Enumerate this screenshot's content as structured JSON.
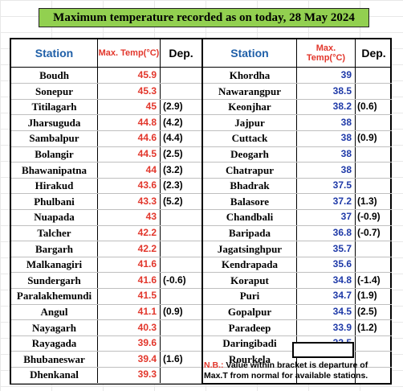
{
  "title": "Maximum temperature recorded as on today, 28 May 2024",
  "headers": {
    "station": "Station",
    "max": "Max. Temp(°C)",
    "dep": "Dep."
  },
  "left": [
    {
      "station": "Boudh",
      "max": "45.9",
      "dep": ""
    },
    {
      "station": "Sonepur",
      "max": "45.3",
      "dep": ""
    },
    {
      "station": "Titilagarh",
      "max": "45",
      "dep": "(2.9)"
    },
    {
      "station": "Jharsuguda",
      "max": "44.8",
      "dep": "(4.2)"
    },
    {
      "station": "Sambalpur",
      "max": "44.6",
      "dep": "(4.4)"
    },
    {
      "station": "Bolangir",
      "max": "44.5",
      "dep": "(2.5)"
    },
    {
      "station": "Bhawanipatna",
      "max": "44",
      "dep": "(3.2)"
    },
    {
      "station": "Hirakud",
      "max": "43.6",
      "dep": "(2.3)"
    },
    {
      "station": "Phulbani",
      "max": "43.3",
      "dep": "(5.2)"
    },
    {
      "station": "Nuapada",
      "max": "43",
      "dep": ""
    },
    {
      "station": "Talcher",
      "max": "42.2",
      "dep": ""
    },
    {
      "station": "Bargarh",
      "max": "42.2",
      "dep": ""
    },
    {
      "station": "Malkanagiri",
      "max": "41.6",
      "dep": ""
    },
    {
      "station": "Sundergarh",
      "max": "41.6",
      "dep": "(-0.6)"
    },
    {
      "station": "Paralakhemundi",
      "max": "41.5",
      "dep": ""
    },
    {
      "station": "Angul",
      "max": "41.1",
      "dep": "(0.9)"
    },
    {
      "station": "Nayagarh",
      "max": "40.3",
      "dep": ""
    },
    {
      "station": "Rayagada",
      "max": "39.6",
      "dep": ""
    },
    {
      "station": "Bhubaneswar",
      "max": "39.4",
      "dep": "(1.6)"
    },
    {
      "station": "Dhenkanal",
      "max": "39.3",
      "dep": ""
    }
  ],
  "right": [
    {
      "station": "Khordha",
      "max": "39",
      "dep": ""
    },
    {
      "station": "Nawarangpur",
      "max": "38.5",
      "dep": ""
    },
    {
      "station": "Keonjhar",
      "max": "38.2",
      "dep": "(0.6)"
    },
    {
      "station": "Jajpur",
      "max": "38",
      "dep": ""
    },
    {
      "station": "Cuttack",
      "max": "38",
      "dep": "(0.9)"
    },
    {
      "station": "Deogarh",
      "max": "38",
      "dep": ""
    },
    {
      "station": "Chatrapur",
      "max": "38",
      "dep": ""
    },
    {
      "station": "Bhadrak",
      "max": "37.5",
      "dep": ""
    },
    {
      "station": "Balasore",
      "max": "37.2",
      "dep": "(1.3)"
    },
    {
      "station": "Chandbali",
      "max": "37",
      "dep": "(-0.9)"
    },
    {
      "station": "Baripada",
      "max": "36.8",
      "dep": "(-0.7)"
    },
    {
      "station": "Jagatsinghpur",
      "max": "35.7",
      "dep": ""
    },
    {
      "station": "Kendrapada",
      "max": "35.6",
      "dep": ""
    },
    {
      "station": "Koraput",
      "max": "34.8",
      "dep": "(-1.4)"
    },
    {
      "station": "Puri",
      "max": "34.7",
      "dep": "(1.9)"
    },
    {
      "station": "Gopalpur",
      "max": "34.5",
      "dep": "(2.5)"
    },
    {
      "station": "Paradeep",
      "max": "33.9",
      "dep": "(1.2)"
    },
    {
      "station": "Daringibadi",
      "max": "33.5",
      "dep": ""
    },
    {
      "station": "Rourkela",
      "max": "",
      "dep": ""
    }
  ],
  "note": {
    "label": "N.B.:",
    "text": " Value within bracket is departure of Max.T from normal for available stations."
  },
  "colors": {
    "title_bg": "#92d050",
    "header_station": "#1f5fa8",
    "header_max": "#e2362b",
    "value_red": "#e2362b",
    "value_blue": "#1f3aa8"
  }
}
